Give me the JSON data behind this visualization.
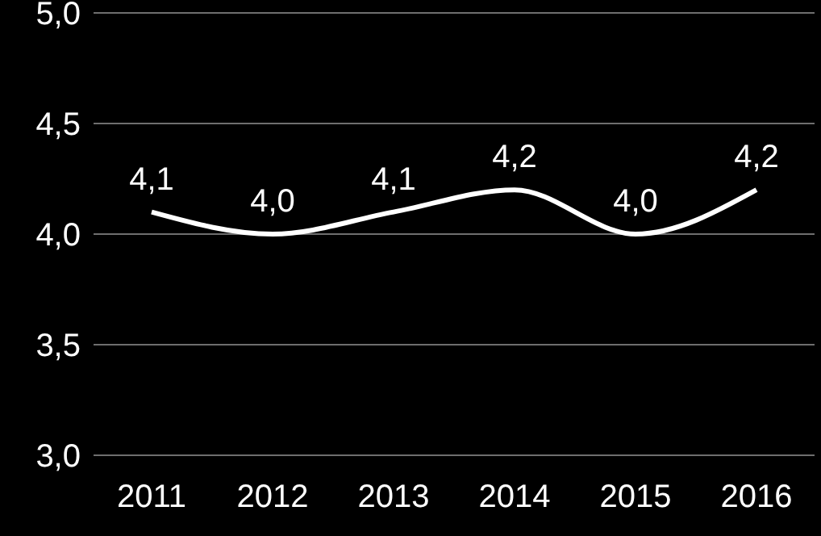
{
  "chart_data": {
    "type": "line",
    "categories": [
      "2011",
      "2012",
      "2013",
      "2014",
      "2015",
      "2016"
    ],
    "series": [
      {
        "color": "#ffffff",
        "values": [
          4.1,
          4.0,
          4.1,
          4.2,
          4.0,
          4.2
        ],
        "value_labels": [
          "4,1",
          "4,0",
          "4,1",
          "4,2",
          "4,0",
          "4,2"
        ]
      }
    ],
    "ylim": [
      3,
      5
    ],
    "yticks": [
      {
        "value": 3,
        "label": "3,0"
      },
      {
        "value": 3.5,
        "label": "3,5"
      },
      {
        "value": 4,
        "label": "4,0"
      },
      {
        "value": 4.5,
        "label": "4,5"
      },
      {
        "value": 5,
        "label": "5,0"
      }
    ],
    "grid": "y",
    "legend": false,
    "marker": "none",
    "line_style": "solid"
  }
}
